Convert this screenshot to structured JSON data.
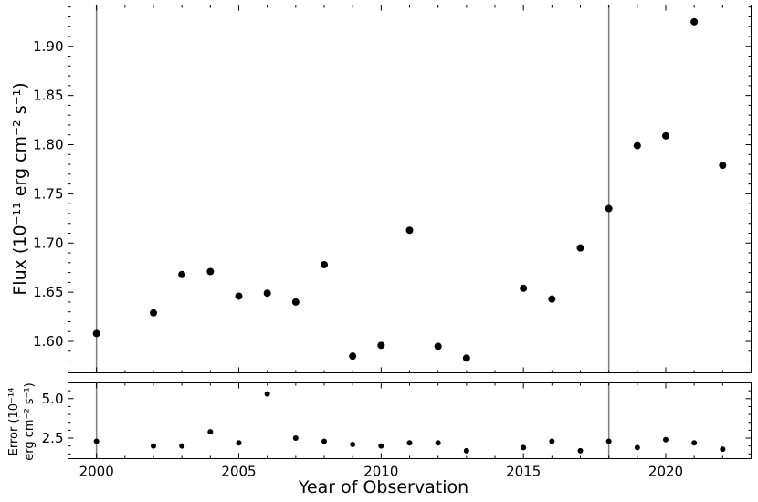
{
  "chart_data": {
    "type": "scatter",
    "xlabel": "Year of Observation",
    "x_ticks": [
      2000,
      2005,
      2010,
      2015,
      2020
    ],
    "xlim": [
      1999,
      2023
    ],
    "vertical_lines": [
      2000,
      2018
    ],
    "colors": {
      "points": "#000000",
      "vertical_lines": "#808080"
    },
    "panels": [
      {
        "ylabel": "Flux (10⁻¹¹ erg cm⁻² s⁻¹)",
        "ylim": [
          1.568,
          1.942
        ],
        "y_ticks": [
          "1.60",
          "1.65",
          "1.70",
          "1.75",
          "1.80",
          "1.85",
          "1.90"
        ],
        "series": [
          {
            "x": [
              2000,
              2002,
              2003,
              2004,
              2005,
              2006,
              2007,
              2008,
              2009,
              2010,
              2011,
              2012,
              2013,
              2015,
              2016,
              2017,
              2018,
              2019,
              2020,
              2021,
              2022
            ],
            "y": [
              1.608,
              1.629,
              1.668,
              1.671,
              1.646,
              1.649,
              1.64,
              1.678,
              1.585,
              1.596,
              1.713,
              1.595,
              1.583,
              1.654,
              1.643,
              1.695,
              1.735,
              1.799,
              1.809,
              1.925,
              1.779
            ]
          }
        ]
      },
      {
        "ylabel_line1": "Error (10⁻¹⁴",
        "ylabel_line2": "erg cm⁻² s⁻¹)",
        "ylim": [
          1.2,
          6.0
        ],
        "y_ticks": [
          "2.5",
          "5.0"
        ],
        "series": [
          {
            "x": [
              2000,
              2002,
              2003,
              2004,
              2005,
              2006,
              2007,
              2008,
              2009,
              2010,
              2011,
              2012,
              2013,
              2015,
              2016,
              2017,
              2018,
              2019,
              2020,
              2021,
              2022
            ],
            "y": [
              2.3,
              2.0,
              2.0,
              2.9,
              2.2,
              5.3,
              2.5,
              2.3,
              2.1,
              2.0,
              2.2,
              2.2,
              1.7,
              1.9,
              2.3,
              1.7,
              2.3,
              1.9,
              2.4,
              2.2,
              1.8
            ]
          }
        ]
      }
    ]
  }
}
